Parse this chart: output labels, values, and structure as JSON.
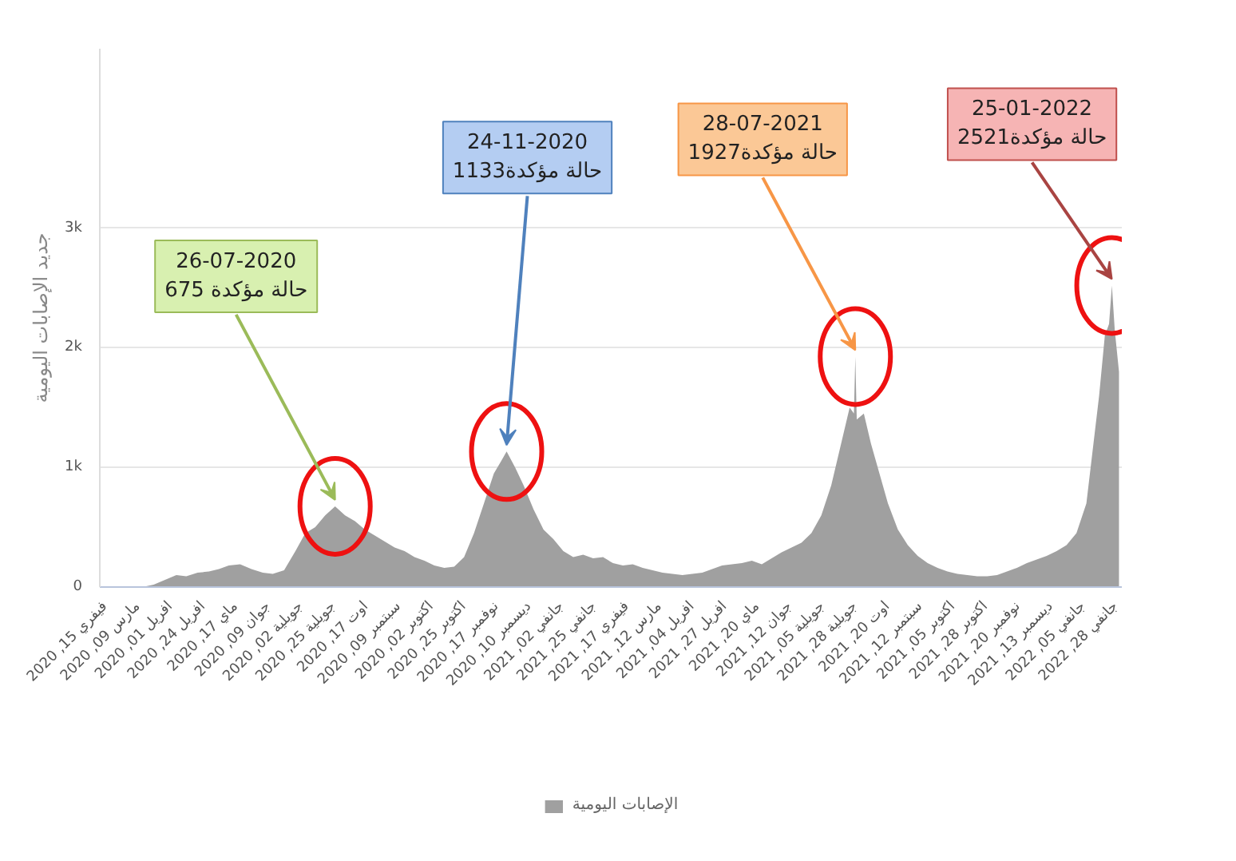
{
  "chart_data": {
    "type": "area",
    "ylabel": "جديد الإصابات اليومية",
    "x": [
      "2020-03-12",
      "2020-03-20",
      "2020-03-28",
      "2020-04-05",
      "2020-04-12",
      "2020-04-20",
      "2020-04-28",
      "2020-05-05",
      "2020-05-12",
      "2020-05-20",
      "2020-05-28",
      "2020-06-05",
      "2020-06-12",
      "2020-06-20",
      "2020-06-28",
      "2020-07-05",
      "2020-07-12",
      "2020-07-19",
      "2020-07-26",
      "2020-08-02",
      "2020-08-09",
      "2020-08-16",
      "2020-08-23",
      "2020-08-30",
      "2020-09-06",
      "2020-09-13",
      "2020-09-20",
      "2020-09-27",
      "2020-10-04",
      "2020-10-11",
      "2020-10-18",
      "2020-10-25",
      "2020-11-01",
      "2020-11-08",
      "2020-11-15",
      "2020-11-20",
      "2020-11-24",
      "2020-11-30",
      "2020-12-06",
      "2020-12-13",
      "2020-12-20",
      "2020-12-27",
      "2021-01-03",
      "2021-01-10",
      "2021-01-17",
      "2021-01-24",
      "2021-01-31",
      "2021-02-07",
      "2021-02-14",
      "2021-02-21",
      "2021-02-28",
      "2021-03-07",
      "2021-03-14",
      "2021-03-21",
      "2021-03-28",
      "2021-04-04",
      "2021-04-11",
      "2021-04-18",
      "2021-04-25",
      "2021-05-02",
      "2021-05-09",
      "2021-05-16",
      "2021-05-23",
      "2021-05-30",
      "2021-06-06",
      "2021-06-13",
      "2021-06-20",
      "2021-06-27",
      "2021-07-04",
      "2021-07-11",
      "2021-07-18",
      "2021-07-24",
      "2021-07-27",
      "2021-07-28",
      "2021-07-29",
      "2021-08-03",
      "2021-08-08",
      "2021-08-14",
      "2021-08-20",
      "2021-08-27",
      "2021-09-03",
      "2021-09-10",
      "2021-09-17",
      "2021-09-24",
      "2021-10-01",
      "2021-10-08",
      "2021-10-15",
      "2021-10-22",
      "2021-10-29",
      "2021-11-05",
      "2021-11-12",
      "2021-11-19",
      "2021-11-26",
      "2021-12-03",
      "2021-12-10",
      "2021-12-17",
      "2021-12-24",
      "2021-12-31",
      "2022-01-07",
      "2022-01-12",
      "2022-01-16",
      "2022-01-20",
      "2022-01-23",
      "2022-01-25",
      "2022-01-27",
      "2022-01-30"
    ],
    "series": [
      {
        "name": "الإصابات اليومية",
        "color": "#a0a0a0",
        "values": [
          0,
          20,
          60,
          100,
          90,
          120,
          130,
          150,
          180,
          190,
          150,
          120,
          110,
          140,
          300,
          450,
          500,
          600,
          675,
          600,
          550,
          480,
          430,
          380,
          330,
          300,
          250,
          220,
          180,
          160,
          170,
          250,
          450,
          700,
          950,
          1050,
          1133,
          1000,
          850,
          650,
          480,
          400,
          300,
          250,
          270,
          240,
          250,
          200,
          180,
          190,
          160,
          140,
          120,
          110,
          100,
          110,
          120,
          150,
          180,
          190,
          200,
          220,
          190,
          240,
          290,
          330,
          370,
          450,
          600,
          850,
          1200,
          1500,
          1450,
          1927,
          1400,
          1450,
          1200,
          950,
          700,
          480,
          350,
          260,
          200,
          160,
          130,
          110,
          100,
          90,
          90,
          100,
          130,
          160,
          200,
          230,
          260,
          300,
          350,
          450,
          700,
          1200,
          1600,
          2100,
          2200,
          2521,
          2150,
          1800
        ]
      }
    ],
    "xlim": [
      "2020-02-11",
      "2022-02-01"
    ],
    "xticks": [
      {
        "value": "2020-02-15",
        "label": "فيفري 15, 2020"
      },
      {
        "value": "2020-03-09",
        "label": "مارس 09, 2020"
      },
      {
        "value": "2020-04-01",
        "label": "افريل 01, 2020"
      },
      {
        "value": "2020-04-24",
        "label": "افريل 24, 2020"
      },
      {
        "value": "2020-05-17",
        "label": "ماي 17, 2020"
      },
      {
        "value": "2020-06-09",
        "label": "جوان 09, 2020"
      },
      {
        "value": "2020-07-02",
        "label": "جويلية 02, 2020"
      },
      {
        "value": "2020-07-25",
        "label": "جويلية 25, 2020"
      },
      {
        "value": "2020-08-17",
        "label": "اوت 17, 2020"
      },
      {
        "value": "2020-09-09",
        "label": "سبتمبر 09, 2020"
      },
      {
        "value": "2020-10-02",
        "label": "اكتوبر 02, 2020"
      },
      {
        "value": "2020-10-25",
        "label": "اكتوبر 25, 2020"
      },
      {
        "value": "2020-11-17",
        "label": "نوفمبر 17, 2020"
      },
      {
        "value": "2020-12-10",
        "label": "ديسمبر 10, 2020"
      },
      {
        "value": "2021-01-02",
        "label": "جانفي 02, 2021"
      },
      {
        "value": "2021-01-25",
        "label": "جانفي 25, 2021"
      },
      {
        "value": "2021-02-17",
        "label": "فيفري 17, 2021"
      },
      {
        "value": "2021-03-12",
        "label": "مارس 12, 2021"
      },
      {
        "value": "2021-04-04",
        "label": "افريل 04, 2021"
      },
      {
        "value": "2021-04-27",
        "label": "افريل 27, 2021"
      },
      {
        "value": "2021-05-20",
        "label": "ماي 20, 2021"
      },
      {
        "value": "2021-06-12",
        "label": "جوان 12, 2021"
      },
      {
        "value": "2021-07-05",
        "label": "جويلية 05, 2021"
      },
      {
        "value": "2021-07-28",
        "label": "جويلية 28, 2021"
      },
      {
        "value": "2021-08-20",
        "label": "اوت 20, 2021"
      },
      {
        "value": "2021-09-12",
        "label": "سبتمبر 12, 2021"
      },
      {
        "value": "2021-10-05",
        "label": "اكتوبر 05, 2021"
      },
      {
        "value": "2021-10-28",
        "label": "اكتوبر 28, 2021"
      },
      {
        "value": "2021-11-20",
        "label": "نوفمبر 20, 2021"
      },
      {
        "value": "2021-12-13",
        "label": "ديسمبر 13, 2021"
      },
      {
        "value": "2022-01-05",
        "label": "جانفي 05, 2022"
      },
      {
        "value": "2022-01-28",
        "label": "جانفي 28, 2022"
      }
    ],
    "ylim": [
      0,
      4500
    ],
    "yticks": [
      {
        "value": 0,
        "label": "0"
      },
      {
        "value": 1000,
        "label": "1k"
      },
      {
        "value": 2000,
        "label": "2k"
      },
      {
        "value": 3000,
        "label": "3k"
      }
    ],
    "grid": "y",
    "legend": "bottom",
    "annotations": [
      {
        "text": "26-07-2020\n675 حالة مؤكدة",
        "x": "2020-07-26",
        "y": 675
      },
      {
        "text": "24-11-2020\n1133حالة مؤكدة",
        "x": "2020-11-24",
        "y": 1133
      },
      {
        "text": "28-07-2021\n1927حالة مؤكدة",
        "x": "2021-07-28",
        "y": 1927
      },
      {
        "text": "25-01-2022\n2521حالة مؤكدة",
        "x": "2022-01-25",
        "y": 2521
      }
    ]
  }
}
